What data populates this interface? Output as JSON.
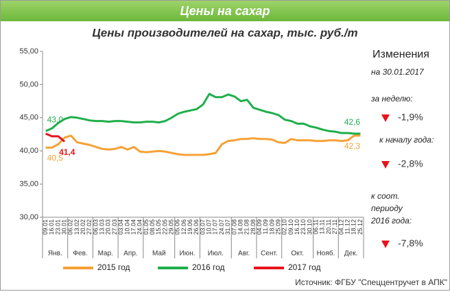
{
  "chart_data": {
    "type": "line",
    "title": "Цены на сахар",
    "subtitle": "Цены производителей на сахар, тыс. руб./т",
    "categories": [
      "09.01",
      "16.01",
      "23.01",
      "30.01",
      "06.02",
      "13.02",
      "20.02",
      "27.02",
      "06.03",
      "13.03",
      "20.03",
      "27.03",
      "03.04",
      "10.04",
      "17.04",
      "24.04",
      "01.05",
      "08.05",
      "15.05",
      "22.05",
      "29.05",
      "05.06",
      "12.06",
      "19.06",
      "26.06",
      "03.07",
      "10.07",
      "17.07",
      "24.07",
      "31.07",
      "07.08",
      "14.08",
      "21.08",
      "28.08",
      "04.09",
      "11.09",
      "18.09",
      "25.09",
      "02.10",
      "09.10",
      "16.10",
      "23.10",
      "30.10",
      "06.11",
      "13.11",
      "20.11",
      "27.11",
      "04.12",
      "11.12",
      "18.12",
      "25.12"
    ],
    "months": [
      "Янв.",
      "Фев.",
      "Мар.",
      "Апр.",
      "Май",
      "Июн.",
      "Июл.",
      "Авг.",
      "Сент.",
      "Окт.",
      "Нояб.",
      "Дек."
    ],
    "ylim": [
      30,
      55
    ],
    "yticks": [
      {
        "value": 30,
        "label": "30,00"
      },
      {
        "value": 35,
        "label": "35,00"
      },
      {
        "value": 40,
        "label": "40,00"
      },
      {
        "value": 45,
        "label": "45,00"
      },
      {
        "value": 50,
        "label": "50,00"
      },
      {
        "value": 55,
        "label": "55,00"
      }
    ],
    "grid": false,
    "legend": "bottom",
    "series": [
      {
        "name": "2015 год",
        "color": "#f7a035",
        "values": [
          40.5,
          40.5,
          41.0,
          42.0,
          42.3,
          41.3,
          41.1,
          40.9,
          40.6,
          40.3,
          40.2,
          40.3,
          40.6,
          40.2,
          40.6,
          39.9,
          39.8,
          39.9,
          40.0,
          39.9,
          39.7,
          39.5,
          39.4,
          39.4,
          39.4,
          39.4,
          39.5,
          39.7,
          41.0,
          41.5,
          41.6,
          41.8,
          41.8,
          41.9,
          41.8,
          41.8,
          41.7,
          41.3,
          41.2,
          41.8,
          41.6,
          41.6,
          41.6,
          41.5,
          41.5,
          41.6,
          41.6,
          41.5,
          41.6,
          42.3,
          42.3
        ],
        "value_labels": [
          "40,5",
          null,
          null,
          null,
          null,
          null,
          null,
          null,
          null,
          null,
          null,
          null,
          null,
          null,
          null,
          null,
          null,
          null,
          null,
          null,
          null,
          null,
          null,
          null,
          null,
          null,
          null,
          null,
          null,
          null,
          null,
          null,
          null,
          null,
          null,
          null,
          null,
          null,
          null,
          null,
          null,
          null,
          null,
          null,
          null,
          null,
          null,
          null,
          null,
          null,
          "42,3"
        ]
      },
      {
        "name": "2016 год",
        "color": "#1fae4b",
        "values": [
          43.0,
          43.4,
          44.2,
          44.8,
          45.1,
          45.0,
          44.8,
          44.6,
          44.5,
          44.5,
          44.4,
          44.5,
          44.5,
          44.4,
          44.3,
          44.3,
          44.4,
          44.4,
          44.3,
          44.5,
          45.0,
          45.6,
          45.9,
          46.1,
          46.3,
          47.0,
          48.6,
          48.1,
          48.1,
          48.5,
          48.2,
          47.5,
          47.7,
          46.5,
          46.2,
          45.9,
          45.7,
          45.4,
          44.7,
          44.5,
          44.1,
          44.1,
          43.7,
          43.5,
          43.2,
          43.0,
          42.9,
          42.7,
          42.7,
          42.6,
          42.6
        ],
        "value_labels": [
          "43,0",
          null,
          null,
          null,
          null,
          null,
          null,
          null,
          null,
          null,
          null,
          null,
          null,
          null,
          null,
          null,
          null,
          null,
          null,
          null,
          null,
          null,
          null,
          null,
          null,
          null,
          null,
          null,
          null,
          null,
          null,
          null,
          null,
          null,
          null,
          null,
          null,
          null,
          null,
          null,
          null,
          null,
          null,
          null,
          null,
          null,
          null,
          null,
          null,
          null,
          "42,6"
        ]
      },
      {
        "name": "2017 год",
        "color": "#e8141b",
        "values": [
          42.6,
          42.2,
          42.2,
          41.4,
          null,
          null,
          null,
          null,
          null,
          null,
          null,
          null,
          null,
          null,
          null,
          null,
          null,
          null,
          null,
          null,
          null,
          null,
          null,
          null,
          null,
          null,
          null,
          null,
          null,
          null,
          null,
          null,
          null,
          null,
          null,
          null,
          null,
          null,
          null,
          null,
          null,
          null,
          null,
          null,
          null,
          null,
          null,
          null,
          null,
          null,
          null
        ],
        "value_labels": [
          null,
          null,
          null,
          "41,4",
          null,
          null,
          null,
          null,
          null,
          null,
          null,
          null,
          null,
          null,
          null,
          null,
          null,
          null,
          null,
          null,
          null,
          null,
          null,
          null,
          null,
          null,
          null,
          null,
          null,
          null,
          null,
          null,
          null,
          null,
          null,
          null,
          null,
          null,
          null,
          null,
          null,
          null,
          null,
          null,
          null,
          null,
          null,
          null,
          null,
          null,
          null
        ]
      }
    ],
    "changes": {
      "title": "Изменения",
      "date": "на 30.01.2017",
      "items": [
        {
          "label": [
            "за неделю:"
          ],
          "value": "-1,9%"
        },
        {
          "label": [
            "к началу года:"
          ],
          "value": "-2,8%"
        },
        {
          "label": [
            "к соот.",
            "периоду",
            "2016 года:"
          ],
          "value": "-7,8%"
        }
      ]
    },
    "source": "Источник: ФГБУ \"Спеццентручет в АПК\""
  }
}
